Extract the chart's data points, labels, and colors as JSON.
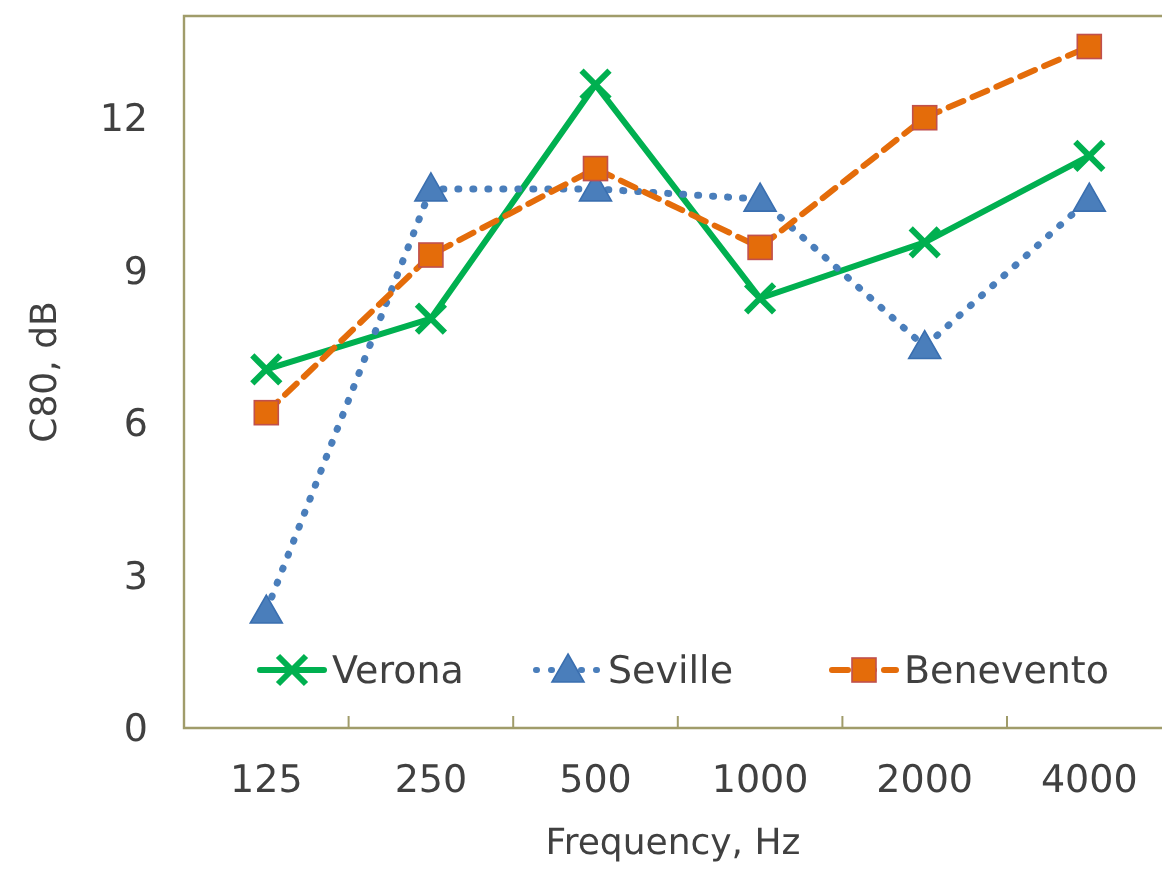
{
  "chart_data": {
    "type": "line",
    "xlabel": "Frequency, Hz",
    "ylabel": "C80, dB",
    "categories": [
      "125",
      "250",
      "500",
      "1000",
      "2000",
      "4000"
    ],
    "ylim": [
      0,
      14
    ],
    "yticks": [
      0,
      3,
      6,
      9,
      12
    ],
    "legend": "bottom",
    "grid": false,
    "series": [
      {
        "name": "Verona",
        "color": "#00b050",
        "values": [
          7.05,
          8.05,
          12.65,
          8.45,
          9.55,
          11.25
        ],
        "marker": "cross",
        "line_style": "solid"
      },
      {
        "name": "Seville",
        "color": "#4a7ebb",
        "values": [
          2.3,
          10.6,
          10.6,
          10.4,
          7.5,
          10.4
        ],
        "marker": "triangle",
        "line_style": "dotted"
      },
      {
        "name": "Benevento",
        "color": "#e46c0a",
        "values": [
          6.2,
          9.3,
          11.0,
          9.45,
          12.0,
          13.4
        ],
        "marker": "square",
        "line_style": "dashed"
      }
    ]
  }
}
